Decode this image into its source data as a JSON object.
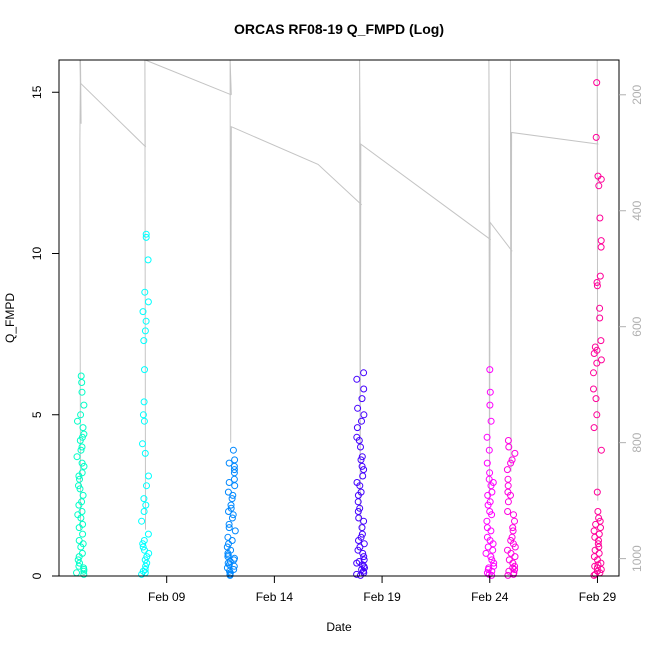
{
  "chart_data": {
    "type": "scatter",
    "title": "ORCAS RF08-19 Q_FMPD (Log)",
    "xlabel": "Date",
    "ylabel": "Q_FMPD",
    "xlim": [
      "2016-02-04",
      "2016-03-01"
    ],
    "ylim": [
      0,
      16
    ],
    "x_ticks": [
      {
        "date": "2016-02-09",
        "label": "Feb 09"
      },
      {
        "date": "2016-02-14",
        "label": "Feb 14"
      },
      {
        "date": "2016-02-19",
        "label": "Feb 19"
      },
      {
        "date": "2016-02-24",
        "label": "Feb 24"
      },
      {
        "date": "2016-02-29",
        "label": "Feb 29"
      }
    ],
    "y_ticks": [
      0,
      5,
      10,
      15
    ],
    "y2_ticks": [
      200,
      400,
      600,
      800,
      1000
    ],
    "y2_range": [
      1030,
      140
    ],
    "grid": false,
    "legend": "none",
    "flights": [
      {
        "date": "2016-02-05",
        "color": "#00FFC8",
        "y": [
          0.1,
          0.2,
          0.3,
          0.5,
          0.7,
          0.9,
          1.1,
          1.3,
          1.6,
          1.8,
          2.0,
          2.3,
          2.5,
          2.8,
          3.0,
          3.2,
          3.5,
          3.7,
          4.0,
          4.2,
          4.4,
          4.6,
          4.8,
          5.0,
          5.3,
          5.7,
          6.0,
          6.2,
          0.05,
          0.15,
          0.4,
          0.6,
          1.0,
          1.5,
          1.9,
          2.2,
          2.7,
          3.1,
          3.4,
          3.9,
          4.3,
          0.25
        ]
      },
      {
        "date": "2016-02-08",
        "color": "#00FFFF",
        "y": [
          0.05,
          0.15,
          0.3,
          0.5,
          0.8,
          1.0,
          1.3,
          1.7,
          2.0,
          2.4,
          2.8,
          3.1,
          3.8,
          4.1,
          4.8,
          5.0,
          5.4,
          6.4,
          7.3,
          7.6,
          7.9,
          8.2,
          8.5,
          8.8,
          9.8,
          10.5,
          10.6,
          0.1,
          0.2,
          0.4,
          0.7,
          1.1,
          0.6,
          0.9,
          2.2
        ]
      },
      {
        "date": "2016-02-12",
        "color": "#0088FF",
        "y": [
          0.02,
          0.05,
          0.1,
          0.2,
          0.3,
          0.4,
          0.5,
          0.6,
          0.8,
          1.0,
          1.2,
          1.4,
          1.6,
          1.8,
          2.0,
          2.2,
          2.4,
          2.6,
          2.8,
          3.0,
          3.2,
          3.4,
          3.6,
          3.9,
          0.15,
          0.25,
          0.35,
          0.7,
          0.9,
          1.1,
          1.5,
          1.9,
          2.1,
          2.5,
          2.9,
          3.3,
          3.5,
          0.45,
          0.55,
          0.65
        ]
      },
      {
        "date": "2016-02-18",
        "color": "#4400FF",
        "y": [
          0.02,
          0.05,
          0.1,
          0.2,
          0.3,
          0.4,
          0.6,
          0.8,
          1.0,
          1.2,
          1.5,
          1.8,
          2.0,
          2.3,
          2.6,
          2.9,
          3.1,
          3.4,
          3.7,
          4.0,
          4.3,
          4.6,
          5.0,
          5.2,
          5.5,
          5.8,
          6.1,
          6.3,
          0.15,
          0.25,
          0.5,
          0.7,
          0.9,
          1.1,
          1.3,
          1.7,
          2.1,
          2.5,
          2.8,
          3.3,
          3.6,
          4.2,
          4.8,
          0.35,
          0.45
        ]
      },
      {
        "date": "2016-02-24",
        "color": "#FF00FF",
        "y": [
          0.02,
          0.05,
          0.1,
          0.2,
          0.3,
          0.4,
          0.6,
          0.8,
          1.0,
          1.2,
          1.4,
          1.7,
          2.0,
          2.3,
          2.6,
          2.9,
          3.2,
          3.5,
          3.9,
          4.3,
          4.8,
          5.3,
          5.7,
          6.4,
          0.15,
          0.25,
          0.5,
          0.7,
          0.9,
          1.1,
          1.5,
          1.9,
          2.2,
          2.5,
          2.8,
          3.0
        ]
      },
      {
        "date": "2016-02-25",
        "color": "#FF00E0",
        "y": [
          0.02,
          0.05,
          0.1,
          0.2,
          0.3,
          0.4,
          0.6,
          0.8,
          1.0,
          1.2,
          1.4,
          1.7,
          2.0,
          2.3,
          2.6,
          2.8,
          3.0,
          3.3,
          3.6,
          3.8,
          4.0,
          4.2,
          0.15,
          0.25,
          0.5,
          0.7,
          0.9,
          1.1,
          1.5,
          1.9,
          2.5,
          3.5
        ]
      },
      {
        "date": "2016-02-29",
        "color": "#FF0099",
        "y": [
          0.02,
          0.05,
          0.1,
          0.2,
          0.3,
          0.4,
          0.5,
          0.6,
          0.8,
          1.0,
          1.2,
          1.4,
          1.6,
          1.8,
          2.0,
          2.6,
          3.9,
          4.6,
          5.0,
          5.5,
          5.8,
          6.3,
          6.6,
          6.9,
          7.1,
          7.3,
          8.0,
          8.3,
          9.1,
          9.3,
          10.4,
          11.1,
          12.1,
          12.4,
          13.6,
          15.3,
          0.15,
          0.25,
          0.35,
          0.7,
          0.9,
          1.1,
          1.3,
          1.5,
          1.7,
          6.7,
          7.0,
          9.0,
          10.2,
          12.3
        ]
      }
    ],
    "flight_segments": [
      {
        "dates": [
          "2016-02-05",
          "2016-02-05",
          "2016-02-05",
          "2016-02-05"
        ],
        "y2": [
          950,
          280,
          120,
          250
        ]
      },
      {
        "dates": [
          "2016-02-05",
          "2016-02-05",
          "2016-02-05",
          "2016-02-08"
        ],
        "y2": [
          140,
          140,
          180,
          290
        ]
      },
      {
        "dates": [
          "2016-02-08",
          "2016-02-08",
          "2016-02-08"
        ],
        "y2": [
          290,
          140,
          950
        ]
      },
      {
        "dates": [
          "2016-02-08",
          "2016-02-12"
        ],
        "y2": [
          140,
          200
        ]
      },
      {
        "dates": [
          "2016-02-12",
          "2016-02-12",
          "2016-02-12",
          "2016-02-12",
          "2016-02-16",
          "2016-02-18"
        ],
        "y2": [
          200,
          140,
          800,
          255,
          320,
          390
        ]
      },
      {
        "dates": [
          "2016-02-18",
          "2016-02-18",
          "2016-02-18",
          "2016-02-18",
          "2016-02-24"
        ],
        "y2": [
          390,
          140,
          950,
          285,
          450
        ]
      },
      {
        "dates": [
          "2016-02-24",
          "2016-02-24",
          "2016-02-24",
          "2016-02-24",
          "2016-02-25"
        ],
        "y2": [
          450,
          140,
          900,
          420,
          470
        ]
      },
      {
        "dates": [
          "2016-02-25",
          "2016-02-25",
          "2016-02-25",
          "2016-02-25",
          "2016-02-29"
        ],
        "y2": [
          470,
          140,
          850,
          265,
          285
        ]
      },
      {
        "dates": [
          "2016-02-29",
          "2016-02-29",
          "2016-02-29"
        ],
        "y2": [
          285,
          140,
          900
        ]
      }
    ]
  }
}
